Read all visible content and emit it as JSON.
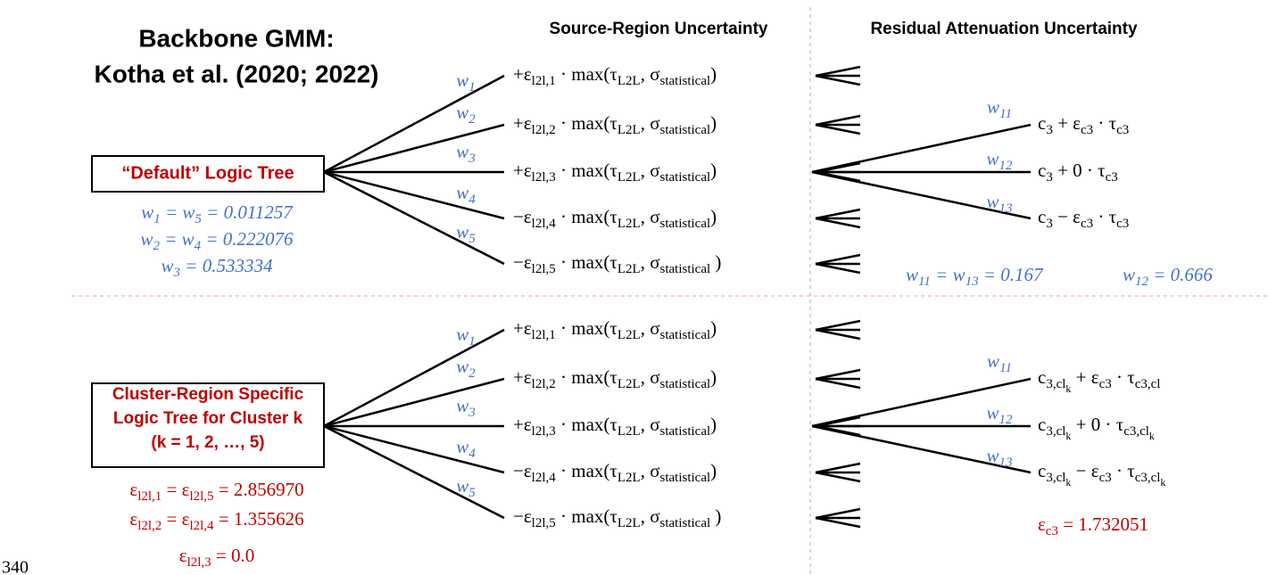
{
  "header": {
    "title_lines": [
      "Backbone GMM:",
      "Kotha et al. (2020; 2022)"
    ]
  },
  "column_headers": [
    "Source-Region Uncertainty",
    "Residual Attenuation Uncertainty"
  ],
  "top": {
    "box_lines": [
      "“Default” Logic Tree"
    ],
    "weight_lines": [
      [
        [
          "w",
          "1"
        ],
        [
          " = w",
          "5"
        ],
        [
          " = 0.011257"
        ]
      ],
      [
        [
          "w",
          "2"
        ],
        [
          " = w",
          "4"
        ],
        [
          " = 0.222076"
        ]
      ],
      [
        [
          "w",
          "3"
        ],
        [
          " = 0.533334"
        ]
      ]
    ],
    "branch_weights": [
      [
        [
          "w",
          "1"
        ]
      ],
      [
        [
          "w",
          "2"
        ]
      ],
      [
        [
          "w",
          "3"
        ]
      ],
      [
        [
          "w",
          "4"
        ]
      ],
      [
        [
          "w",
          "5"
        ]
      ]
    ],
    "branches": [
      [
        [
          "+ε",
          "l2l,1"
        ],
        [
          " · max(τ",
          "L2L"
        ],
        [
          ", σ",
          "statistical"
        ],
        [
          ")"
        ]
      ],
      [
        [
          "+ε",
          "l2l,2"
        ],
        [
          " · max(τ",
          "L2L"
        ],
        [
          ", σ",
          "statistical"
        ],
        [
          ")"
        ]
      ],
      [
        [
          "+ε",
          "l2l,3"
        ],
        [
          " · max(τ",
          "L2L"
        ],
        [
          ", σ",
          "statistical"
        ],
        [
          ")"
        ]
      ],
      [
        [
          "−ε",
          "l2l,4"
        ],
        [
          " · max(τ",
          "L2L"
        ],
        [
          ", σ",
          "statistical"
        ],
        [
          ")"
        ]
      ],
      [
        [
          "−ε",
          "l2l,5"
        ],
        [
          " · max(τ",
          "L2L"
        ],
        [
          ", σ",
          "statistical"
        ],
        [
          " )"
        ]
      ]
    ],
    "attenuation_weights": [
      [
        [
          "w",
          "11"
        ]
      ],
      [
        [
          "w",
          "12"
        ]
      ],
      [
        [
          "w",
          "13"
        ]
      ]
    ],
    "attenuation_branches": [
      [
        [
          "c",
          "3"
        ],
        [
          " + ε",
          "c3"
        ],
        [
          " · τ",
          "c3"
        ]
      ],
      [
        [
          "c",
          "3"
        ],
        [
          " + 0 · τ",
          "c3"
        ]
      ],
      [
        [
          "c",
          "3"
        ],
        [
          " − ε",
          "c3"
        ],
        [
          " · τ",
          "c3"
        ]
      ]
    ],
    "attenuation_notes": [
      [
        [
          "w",
          "11"
        ],
        [
          " = w",
          "13"
        ],
        [
          " = 0.167"
        ]
      ],
      [
        [
          "w",
          "12"
        ],
        [
          " = 0.666"
        ]
      ]
    ]
  },
  "bottom": {
    "box_lines": [
      "Cluster-Region Specific",
      "Logic Tree for Cluster k",
      "(k = 1, 2, …, 5)"
    ],
    "weight_lines": [
      [
        [
          "ε",
          "l2l,1"
        ],
        [
          " = ε",
          "l2l,5"
        ],
        [
          " = 2.856970"
        ]
      ],
      [
        [
          "ε",
          "l2l,2"
        ],
        [
          " = ε",
          "l2l,4"
        ],
        [
          " = 1.355626"
        ]
      ],
      [
        [
          "ε",
          "l2l,3"
        ],
        [
          " = 0.0"
        ]
      ]
    ],
    "branch_weights": [
      [
        [
          "w",
          "1"
        ]
      ],
      [
        [
          "w",
          "2"
        ]
      ],
      [
        [
          "w",
          "3"
        ]
      ],
      [
        [
          "w",
          "4"
        ]
      ],
      [
        [
          "w",
          "5"
        ]
      ]
    ],
    "branches": [
      [
        [
          "+ε",
          "l2l,1"
        ],
        [
          " · max(τ",
          "L2L"
        ],
        [
          ", σ",
          "statistical"
        ],
        [
          ")"
        ]
      ],
      [
        [
          "+ε",
          "l2l,2"
        ],
        [
          " · max(τ",
          "L2L"
        ],
        [
          ", σ",
          "statistical"
        ],
        [
          ")"
        ]
      ],
      [
        [
          "+ε",
          "l2l,3"
        ],
        [
          " · max(τ",
          "L2L"
        ],
        [
          ", σ",
          "statistical"
        ],
        [
          ")"
        ]
      ],
      [
        [
          "−ε",
          "l2l,4"
        ],
        [
          " · max(τ",
          "L2L"
        ],
        [
          ", σ",
          "statistical"
        ],
        [
          ")"
        ]
      ],
      [
        [
          "−ε",
          "l2l,5"
        ],
        [
          " · max(τ",
          "L2L"
        ],
        [
          ", σ",
          "statistical"
        ],
        [
          " )"
        ]
      ]
    ],
    "attenuation_weights": [
      [
        [
          "w",
          "11"
        ]
      ],
      [
        [
          "w",
          "12"
        ]
      ],
      [
        [
          "w",
          "13"
        ]
      ]
    ],
    "attenuation_branches": [
      [
        [
          "c",
          "3,cl",
          "k"
        ],
        [
          " + ε",
          "c3"
        ],
        [
          " · τ",
          "c3,cl"
        ]
      ],
      [
        [
          "c",
          "3,cl",
          "k"
        ],
        [
          " + 0 · τ",
          "c3,cl",
          "k"
        ]
      ],
      [
        [
          "c",
          "3,cl",
          "k"
        ],
        [
          " − ε",
          "c3"
        ],
        [
          " · τ",
          "c3,cl",
          "k"
        ]
      ]
    ],
    "attenuation_notes": [
      [
        [
          "ε",
          "c3"
        ],
        [
          " = 1.732051"
        ]
      ]
    ]
  },
  "page_number": "340"
}
